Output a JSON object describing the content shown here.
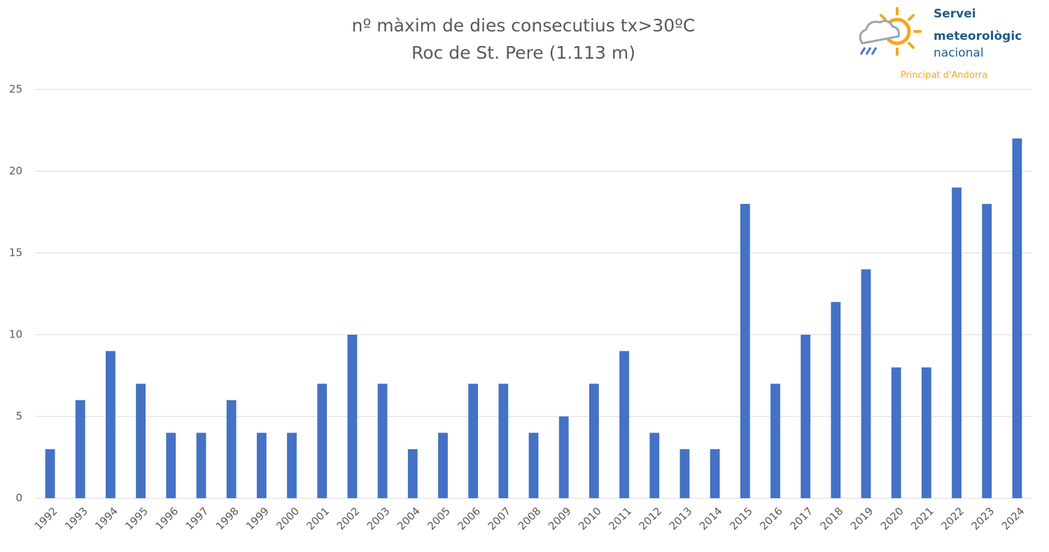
{
  "chart_data": {
    "type": "bar",
    "title": "nº màxim de dies consecutius tx>30ºC",
    "subtitle": "Roc de St. Pere (1.113 m)",
    "categories": [
      "1992",
      "1993",
      "1994",
      "1995",
      "1996",
      "1997",
      "1998",
      "1999",
      "2000",
      "2001",
      "2002",
      "2003",
      "2004",
      "2005",
      "2006",
      "2007",
      "2008",
      "2009",
      "2010",
      "2011",
      "2012",
      "2013",
      "2014",
      "2015",
      "2016",
      "2017",
      "2018",
      "2019",
      "2020",
      "2021",
      "2022",
      "2023",
      "2024"
    ],
    "values": [
      3,
      6,
      9,
      7,
      4,
      4,
      6,
      4,
      4,
      7,
      10,
      7,
      3,
      4,
      7,
      7,
      4,
      5,
      7,
      9,
      4,
      3,
      3,
      18,
      7,
      10,
      12,
      14,
      8,
      8,
      19,
      18,
      22
    ],
    "color": "#4472c4",
    "ylim": [
      0,
      25
    ],
    "yticks": [
      0,
      5,
      10,
      15,
      20,
      25
    ],
    "grid": true
  },
  "logo": {
    "lines": [
      "Servei",
      "meteorològic",
      "nacional"
    ],
    "caption": "Principat d'Andorra"
  }
}
